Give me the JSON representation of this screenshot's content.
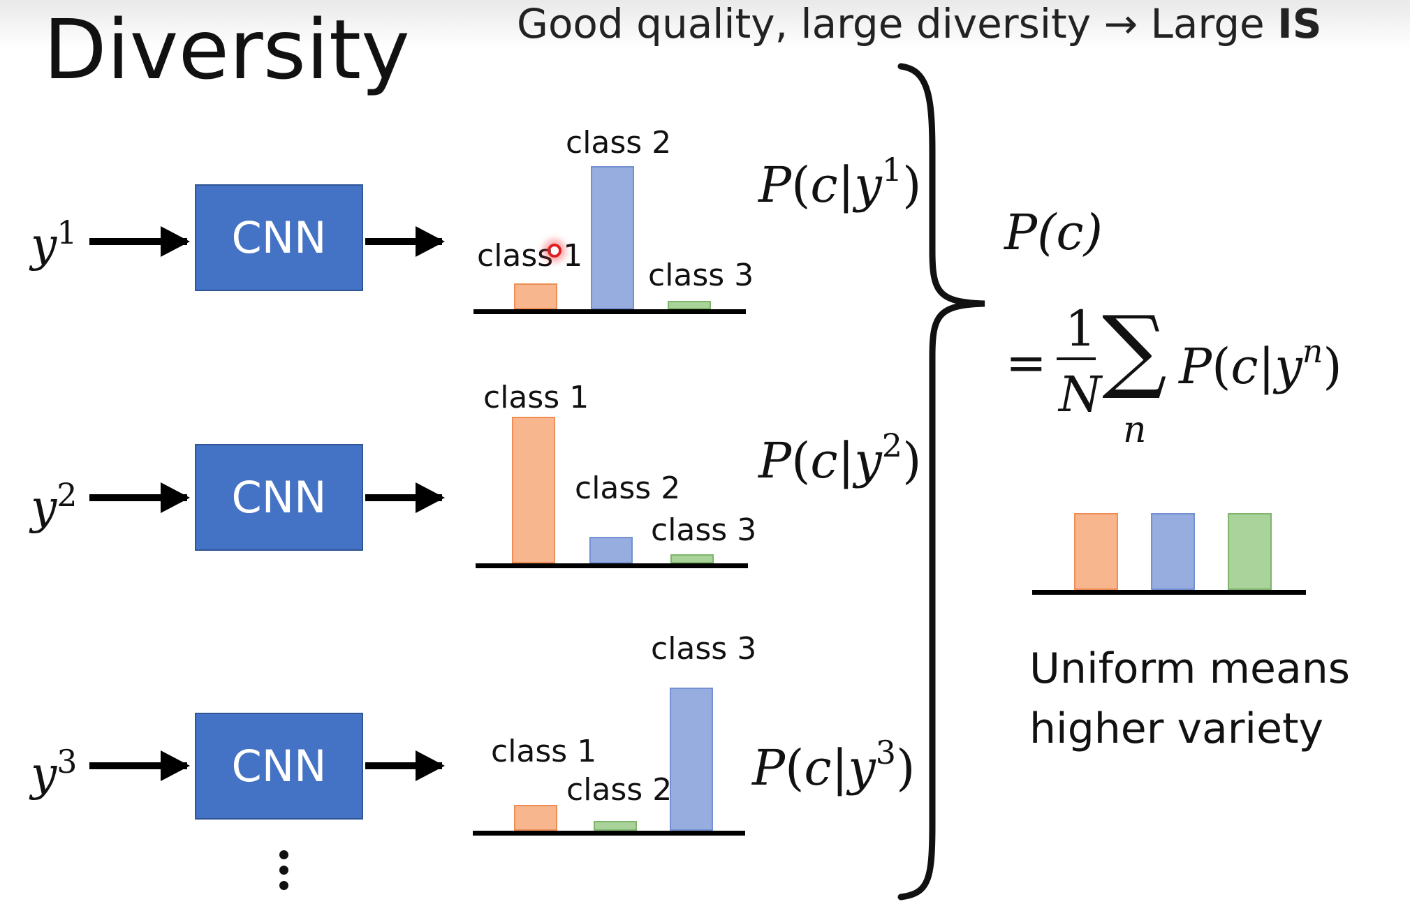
{
  "title": "Diversity",
  "headline": {
    "text": "Good quality, large diversity → Large ",
    "bold": "IS"
  },
  "inputs": [
    {
      "var": "y",
      "sup": "1"
    },
    {
      "var": "y",
      "sup": "2"
    },
    {
      "var": "y",
      "sup": "3"
    }
  ],
  "cnn_label": "CNN",
  "distributions": [
    {
      "formula": {
        "p": "P",
        "c": "c",
        "y": "y",
        "sup": "1"
      },
      "bars": [
        {
          "label": "class 1",
          "value": 0.18,
          "color": "orange"
        },
        {
          "label": "class 2",
          "value": 1.0,
          "color": "blue"
        },
        {
          "label": "class 3",
          "value": 0.06,
          "color": "green"
        }
      ]
    },
    {
      "formula": {
        "p": "P",
        "c": "c",
        "y": "y",
        "sup": "2"
      },
      "bars": [
        {
          "label": "class 1",
          "value": 1.0,
          "color": "orange"
        },
        {
          "label": "class 2",
          "value": 0.18,
          "color": "blue"
        },
        {
          "label": "class 3",
          "value": 0.06,
          "color": "green"
        }
      ]
    },
    {
      "formula": {
        "p": "P",
        "c": "c",
        "y": "y",
        "sup": "3"
      },
      "bars": [
        {
          "label": "class 1",
          "value": 0.18,
          "color": "orange"
        },
        {
          "label": "class 2",
          "value": 0.07,
          "color": "green"
        },
        {
          "label": "class 3",
          "value": 1.0,
          "color": "blue"
        }
      ]
    }
  ],
  "marginal": {
    "lhs": "P(c)",
    "eq": "=",
    "frac_num": "1",
    "frac_den": "N",
    "sum": "∑",
    "sum_index": "n",
    "term": {
      "p": "P",
      "c": "c",
      "y": "y",
      "sup": "n"
    },
    "bars": [
      {
        "value": 1.0,
        "color": "orange"
      },
      {
        "value": 1.0,
        "color": "blue"
      },
      {
        "value": 1.0,
        "color": "green"
      }
    ],
    "caption_line1": "Uniform means",
    "caption_line2": "higher variety"
  },
  "colors": {
    "cnn_fill": "#4472c4",
    "orange": "#f8b68f",
    "blue": "#98addf",
    "green": "#a9d39a"
  },
  "more_indicator": "vertical-ellipsis"
}
